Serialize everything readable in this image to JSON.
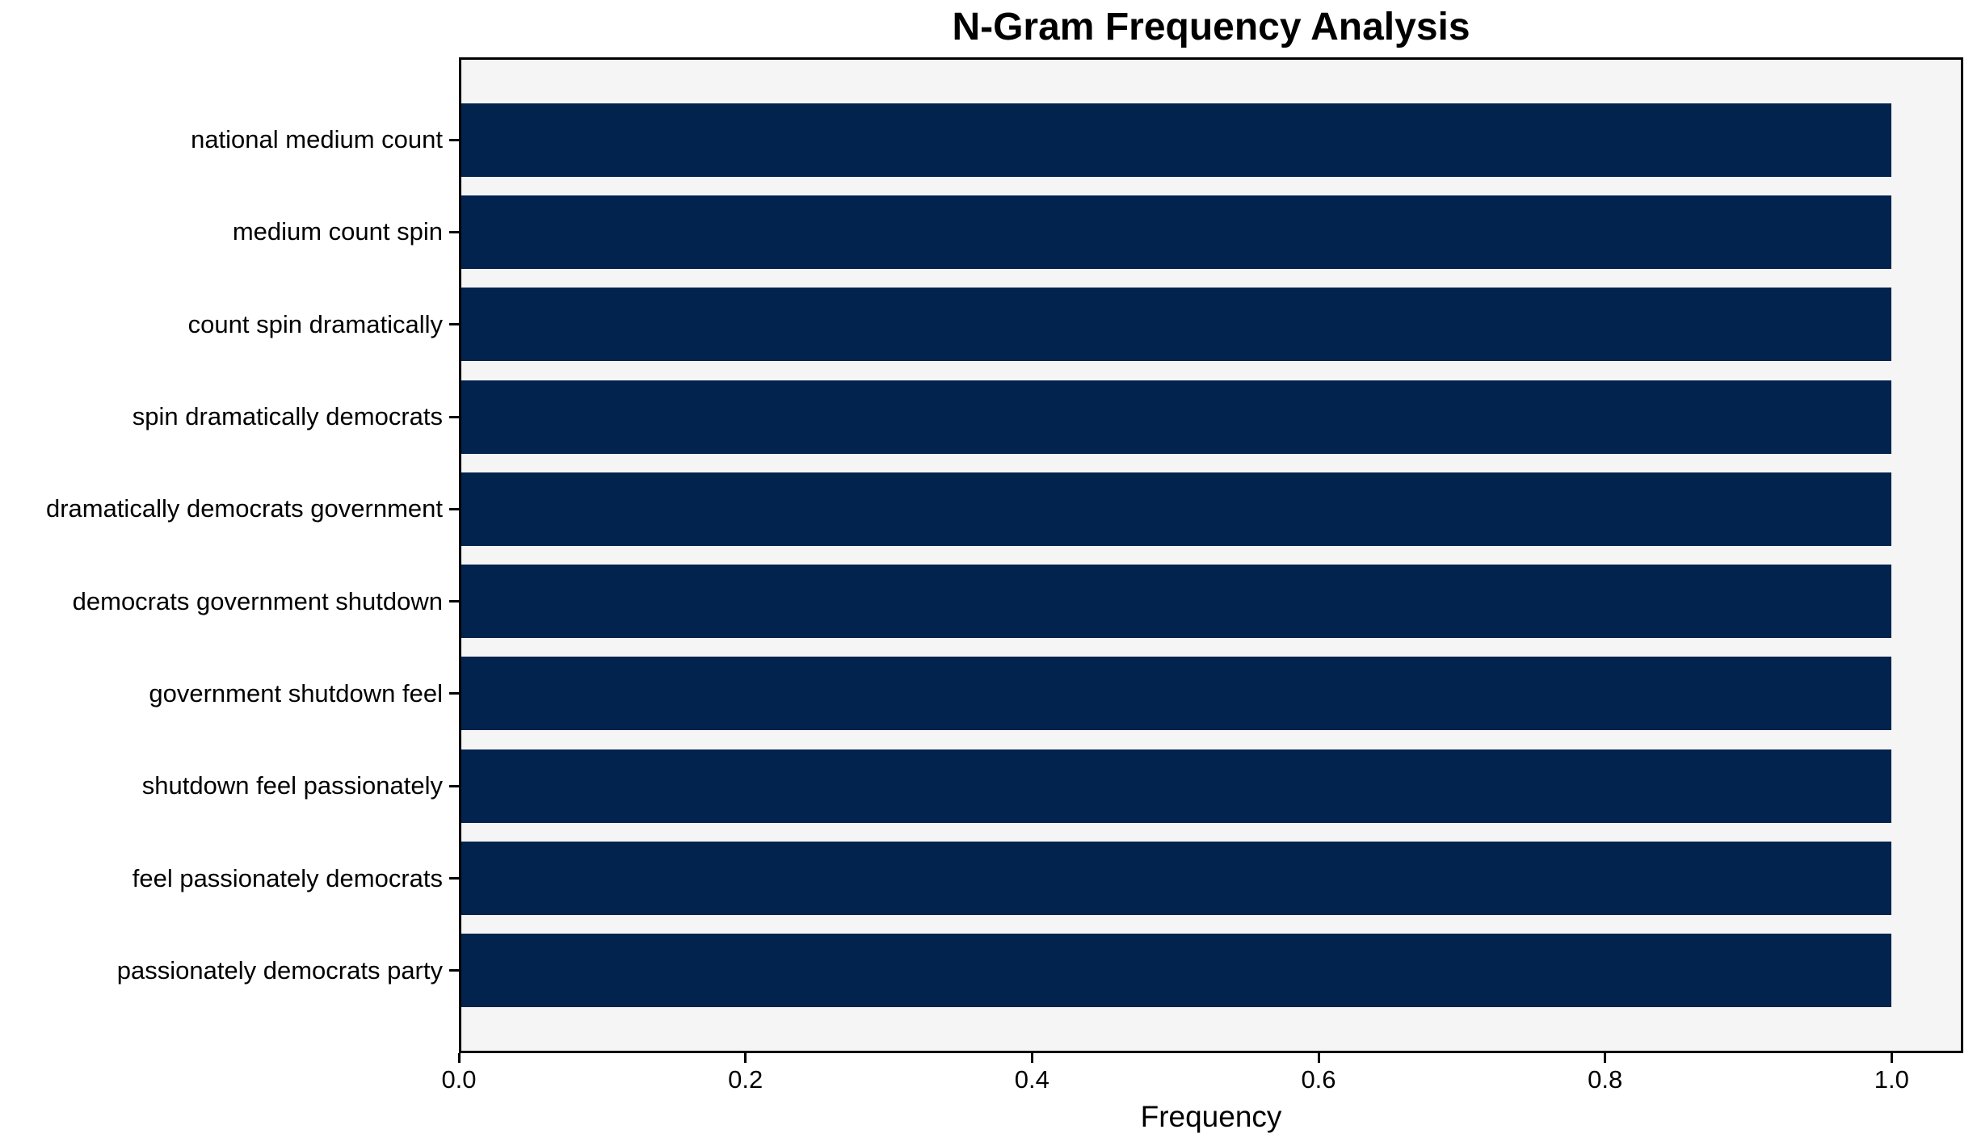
{
  "chart_data": {
    "type": "bar",
    "orientation": "horizontal",
    "title": "N-Gram Frequency Analysis",
    "xlabel": "Frequency",
    "ylabel": "",
    "categories": [
      "national medium count",
      "medium count spin",
      "count spin dramatically",
      "spin dramatically democrats",
      "dramatically democrats government",
      "democrats government shutdown",
      "government shutdown feel",
      "shutdown feel passionately",
      "feel passionately democrats",
      "passionately democrats party"
    ],
    "values": [
      1.0,
      1.0,
      1.0,
      1.0,
      1.0,
      1.0,
      1.0,
      1.0,
      1.0,
      1.0
    ],
    "xlim": [
      0,
      1.05
    ],
    "xticks": [
      "0.0",
      "0.2",
      "0.4",
      "0.6",
      "0.8",
      "1.0"
    ],
    "grid": false,
    "legend": null,
    "bar_color": "#02234d",
    "plot_background": "#f6f5f5",
    "figure_background": "#ffffff",
    "spine_color": "#000000",
    "text_color": "#000000"
  }
}
